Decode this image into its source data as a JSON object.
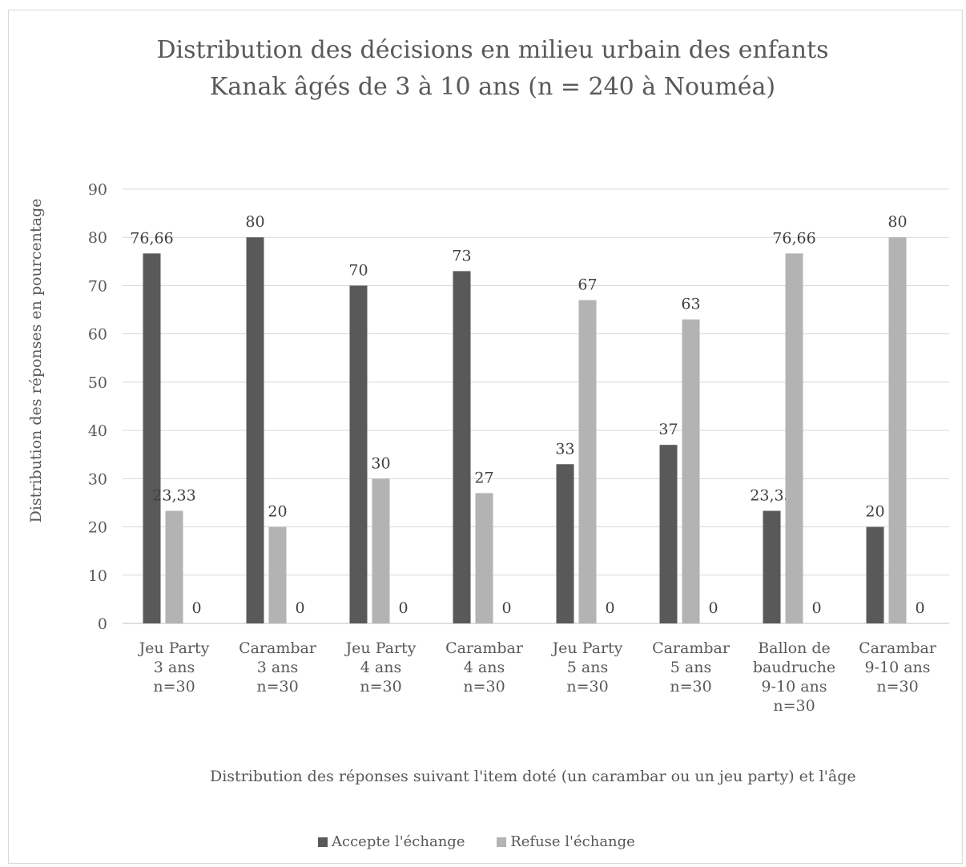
{
  "chart_data": {
    "type": "bar",
    "title_lines": [
      "Distribution des décisions en milieu urbain des enfants",
      "Kanak âgés de 3 à 10 ans (n = 240 à Nouméa)"
    ],
    "ylabel": "Distribution des réponses en pourcentage",
    "xlabel": "Distribution des réponses suivant l'item doté (un carambar ou un jeu party) et l'âge",
    "ylim": [
      0,
      90
    ],
    "yticks": [
      0,
      10,
      20,
      30,
      40,
      50,
      60,
      70,
      80,
      90
    ],
    "grid": true,
    "legend_position": "bottom",
    "categories": [
      [
        "Jeu Party",
        "3 ans",
        "n=30"
      ],
      [
        "Carambar",
        "3 ans",
        "n=30"
      ],
      [
        "Jeu Party",
        "4 ans",
        "n=30"
      ],
      [
        "Carambar",
        "4 ans",
        "n=30"
      ],
      [
        "Jeu Party",
        "5 ans",
        "n=30"
      ],
      [
        "Carambar",
        "5 ans",
        "n=30"
      ],
      [
        "Ballon de",
        "baudruche",
        "9-10 ans",
        "n=30"
      ],
      [
        "Carambar",
        "9-10 ans",
        "n=30"
      ]
    ],
    "series": [
      {
        "name": "Accepte l'échange",
        "color": "#595959",
        "values": [
          76.66,
          80,
          70,
          73,
          33,
          37,
          23.33,
          20
        ],
        "labels": [
          "76,66",
          "80",
          "70",
          "73",
          "33",
          "37",
          "23,33",
          "20"
        ]
      },
      {
        "name": "Refuse l'échange",
        "color": "#b3b3b3",
        "values": [
          23.33,
          20,
          30,
          27,
          67,
          63,
          76.66,
          80
        ],
        "labels": [
          "23,33",
          "20",
          "30",
          "27",
          "67",
          "63",
          "76,66",
          "80"
        ]
      },
      {
        "values": [
          0,
          0,
          0,
          0,
          0,
          0,
          0,
          0
        ],
        "labels": [
          "0",
          "0",
          "0",
          "0",
          "0",
          "0",
          "0",
          "0"
        ]
      }
    ],
    "legend": [
      {
        "label": "Accepte l'échange",
        "color": "#595959"
      },
      {
        "label": "Refuse l'échange",
        "color": "#b3b3b3"
      }
    ]
  }
}
